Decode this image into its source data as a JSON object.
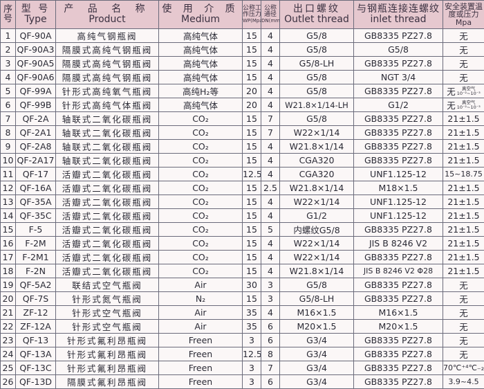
{
  "header": {
    "seq": "序号",
    "type_zh": "型 号",
    "type_en": "Type",
    "product_zh": "产 品 名 称",
    "product_en": "Product",
    "medium_zh": "使 用 介 质",
    "medium_en": "Medium",
    "wp_zh1": "公称工",
    "wp_zh2": "作压力",
    "wp_en": "WP(Mpa)",
    "dn_zh1": "公称",
    "dn_zh2": "通径",
    "dn_en": "DN(mm)",
    "outlet_zh": "出口螺纹",
    "outlet_en": "Outlet thread",
    "inlet_zh": "与钢瓶连接连螺纹",
    "inlet_en": "inlet thread",
    "safety_zh1": "安全装置温",
    "safety_zh2": "度或压力",
    "safety_en": "Mpa"
  },
  "colors": {
    "header_bg": "#e6c8cf",
    "grid": "#6a6a7a"
  },
  "rows": [
    {
      "no": "1",
      "type": "QF-90A",
      "product": "高纯气钢瓶阀",
      "medium": "高纯气体",
      "wp": "15",
      "dn": "4",
      "outlet": "G5/8",
      "inlet": "GB8335 PZ27.8",
      "safety": "无"
    },
    {
      "no": "2",
      "type": "QF-90A3",
      "product": "隔膜式高纯气钢瓶阀",
      "medium": "高纯气体",
      "wp": "15",
      "dn": "4",
      "outlet": "G5/8",
      "inlet": "G5/8",
      "safety": "无"
    },
    {
      "no": "3",
      "type": "QF-90A5",
      "product": "隔膜式高纯气钢瓶阀",
      "medium": "高纯气体",
      "wp": "15",
      "dn": "4",
      "outlet": "G5/8-LH",
      "inlet": "GB8335 PZ27.8",
      "safety": "无"
    },
    {
      "no": "4",
      "type": "QF-90A6",
      "product": "隔膜式高纯气钢瓶阀",
      "medium": "高纯气体",
      "wp": "15",
      "dn": "4",
      "outlet": "G5/8",
      "inlet": "NGT 3/4",
      "safety": "无"
    },
    {
      "no": "5",
      "type": "QF-99A",
      "product": "针形式高纯氧气瓶阀",
      "medium": "高纯H₂等",
      "wp": "20",
      "dn": "4",
      "outlet": "G5/8",
      "inlet": "GB8335 PZ27.8",
      "safety": "无",
      "safety_note1": "真空气",
      "safety_note2": "10⁻²~10⁻³"
    },
    {
      "no": "6",
      "type": "QF-99B",
      "product": "针形式高纯气体瓶阀",
      "medium": "高纯气体",
      "wp": "20",
      "dn": "4",
      "outlet": "W21.8×1/14-LH",
      "inlet": "G1/2",
      "safety": "无",
      "safety_note1": "真空气",
      "safety_note2": "10⁻²~10⁻³"
    },
    {
      "no": "7",
      "type": "QF-2A",
      "product": "轴联式二氧化碳瓶阀",
      "medium": "CO₂",
      "wp": "15",
      "dn": "7",
      "outlet": "G5/8",
      "inlet": "GB8335 PZ27.8",
      "safety": "21±1.5"
    },
    {
      "no": "8",
      "type": "QF-2A1",
      "product": "轴联式二氧化碳瓶阀",
      "medium": "CO₂",
      "wp": "15",
      "dn": "7",
      "outlet": "W22×1/14",
      "inlet": "GB8335 PZ27.8",
      "safety": "21±1.5"
    },
    {
      "no": "9",
      "type": "QF-2A8",
      "product": "轴联式二氧化碳瓶阀",
      "medium": "CO₂",
      "wp": "15",
      "dn": "4",
      "outlet": "W21.8×1/14",
      "inlet": "GB8335 PZ27.8",
      "safety": "21±1.5"
    },
    {
      "no": "10",
      "type": "QF-2A17",
      "product": "轴联式二氧化碳瓶阀",
      "medium": "CO₂",
      "wp": "15",
      "dn": "4",
      "outlet": "CGA320",
      "inlet": "GB8335 PZ27.8",
      "safety": "21±1.5"
    },
    {
      "no": "11",
      "type": "QF-17",
      "product": "活瓣式二氧化碳瓶阀",
      "medium": "CO₂",
      "wp": "12.5",
      "dn": "4",
      "outlet": "CGA320",
      "inlet": "UNF1.125-12",
      "safety": "15~18.75"
    },
    {
      "no": "12",
      "type": "QF-16A",
      "product": "活瓣式二氧化碳瓶阀",
      "medium": "CO₂",
      "wp": "15",
      "dn": "2.5",
      "outlet": "W21.8×1/14",
      "inlet": "M18×1.5",
      "safety": "21±1.5"
    },
    {
      "no": "13",
      "type": "QF-35A",
      "product": "活瓣式二氧化碳瓶阀",
      "medium": "CO₂",
      "wp": "15",
      "dn": "4",
      "outlet": "W22×1/14",
      "inlet": "UNF1.125-12",
      "safety": "21±1.5"
    },
    {
      "no": "14",
      "type": "QF-35C",
      "product": "活瓣式二氧化碳瓶阀",
      "medium": "CO₂",
      "wp": "15",
      "dn": "4",
      "outlet": "G1/2",
      "inlet": "UNF1.125-12",
      "safety": "21±1.5"
    },
    {
      "no": "15",
      "type": "F-5",
      "product": "活瓣式二氧化碳瓶阀",
      "medium": "CO₂",
      "wp": "15",
      "dn": "5",
      "outlet": "内螺纹G5/8",
      "inlet": "GB8335 PZ27.8",
      "safety": "21±1.5"
    },
    {
      "no": "16",
      "type": "F-2M",
      "product": "活瓣式二氧化碳瓶阀",
      "medium": "CO₂",
      "wp": "15",
      "dn": "4",
      "outlet": "W22×1/14",
      "inlet": "JIS B 8246 V2",
      "safety": "21±1.5"
    },
    {
      "no": "17",
      "type": "F-2M1",
      "product": "活瓣式二氧化碳瓶阀",
      "medium": "CO₂",
      "wp": "15",
      "dn": "4",
      "outlet": "W22×1/14",
      "inlet": "GB8335 PZ27.8",
      "safety": "21±1.5"
    },
    {
      "no": "18",
      "type": "F-2N",
      "product": "活瓣式二氧化碳瓶阀",
      "medium": "CO₂",
      "wp": "15",
      "dn": "4",
      "outlet": "W21.8×1/14",
      "inlet": "JIS B 8246 V2 Φ28",
      "safety": "21±1.5"
    },
    {
      "no": "19",
      "type": "QF-5A2",
      "product": "联结式空气瓶阀",
      "medium": "Air",
      "wp": "30",
      "dn": "3",
      "outlet": "G5/8",
      "inlet": "GB8335 PZ27.8",
      "safety": "无"
    },
    {
      "no": "20",
      "type": "QF-7S",
      "product": "针形式氮气瓶阀",
      "medium": "N₂",
      "wp": "15",
      "dn": "3",
      "outlet": "G5/8-LH",
      "inlet": "GB8335 PZ27.8",
      "safety": "无"
    },
    {
      "no": "21",
      "type": "ZF-12",
      "product": "针形式空气瓶阀",
      "medium": "Air",
      "wp": "35",
      "dn": "4",
      "outlet": "M16×1.5",
      "inlet": "M16×1.5",
      "safety": "无"
    },
    {
      "no": "22",
      "type": "ZF-12A",
      "product": "针形式空气瓶阀",
      "medium": "Air",
      "wp": "35",
      "dn": "6",
      "outlet": "M20×1.5",
      "inlet": "M20×1.5",
      "safety": "无"
    },
    {
      "no": "23",
      "type": "QF-13",
      "product": "针形式氟利昂瓶阀",
      "medium": "Freen",
      "wp": "3",
      "dn": "6",
      "outlet": "G3/4",
      "inlet": "GB8335 PZ27.8",
      "safety": "无"
    },
    {
      "no": "24",
      "type": "QF-13A",
      "product": "针形式氟利昂瓶阀",
      "medium": "Freen",
      "wp": "12.5",
      "dn": "8",
      "outlet": "G3/4",
      "inlet": "GB8335 PZ27.8",
      "safety": "无"
    },
    {
      "no": "25",
      "type": "QF-13C",
      "product": "针形式氟利昂瓶阀",
      "medium": "Freen",
      "wp": "3",
      "dn": "7",
      "outlet": "G3/4",
      "inlet": "GB8335 PZ27.8",
      "safety": "70℃⁺⁴℃₋₂℃"
    },
    {
      "no": "26",
      "type": "QF-13D",
      "product": "隔膜式氟利昂瓶阀",
      "medium": "Freen",
      "wp": "3",
      "dn": "6",
      "outlet": "G3/4",
      "inlet": "GB8335 PZ27.8",
      "safety": "3.9~4.5"
    }
  ]
}
